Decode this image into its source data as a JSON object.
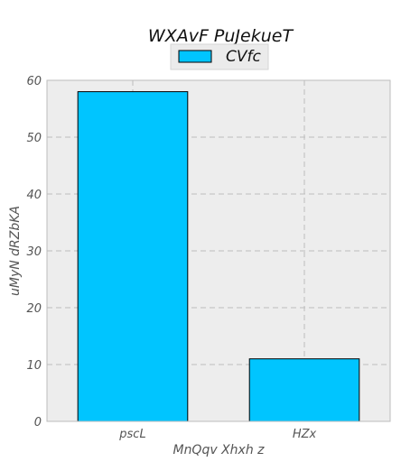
{
  "chart_data": {
    "type": "bar",
    "title": "WXAvF PuJekueT",
    "xlabel": "MnQqv Xhxh z",
    "ylabel": "uMyN dRZbKA",
    "categories": [
      "pscL",
      "HZx"
    ],
    "series": [
      {
        "name": "CVfc",
        "values": [
          58,
          11
        ]
      }
    ],
    "ylim": [
      0,
      60
    ],
    "yticks": [
      0,
      10,
      20,
      30,
      40,
      50,
      60
    ],
    "grid": true,
    "legend": "top-center",
    "colors": {
      "bar_fill": "#00c5ff",
      "bar_edge": "#000000",
      "plot_bg": "#ededed",
      "grid": "#bdbdbd",
      "axes_edge": "#bcbcbc"
    }
  }
}
